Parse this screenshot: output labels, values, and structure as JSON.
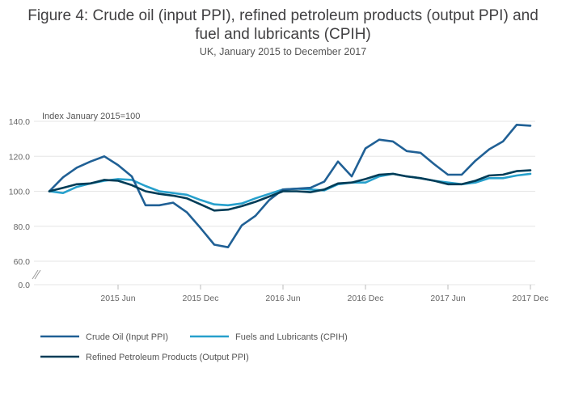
{
  "title_line1": "Figure 4: Crude oil (input PPI), refined petroleum products (output PPI) and",
  "title_line2": "fuel and lubricants (CPIH)",
  "subtitle": "UK, January 2015 to December 2017",
  "chart_data": {
    "type": "line",
    "ylabel": "Index January 2015=100",
    "y_ticks": [
      "0.0",
      "60.0",
      "80.0",
      "100.0",
      "120.0",
      "140.0"
    ],
    "x_ticks": [
      "2015 Jun",
      "2015 Dec",
      "2016 Jun",
      "2016 Dec",
      "2017 Jun",
      "2017 Dec"
    ],
    "x_tick_months": [
      5,
      11,
      17,
      23,
      29,
      35
    ],
    "y_axis_break": true,
    "grid": true,
    "legend_position": "bottom",
    "months": [
      "2015-01",
      "2015-02",
      "2015-03",
      "2015-04",
      "2015-05",
      "2015-06",
      "2015-07",
      "2015-08",
      "2015-09",
      "2015-10",
      "2015-11",
      "2015-12",
      "2016-01",
      "2016-02",
      "2016-03",
      "2016-04",
      "2016-05",
      "2016-06",
      "2016-07",
      "2016-08",
      "2016-09",
      "2016-10",
      "2016-11",
      "2016-12",
      "2017-01",
      "2017-02",
      "2017-03",
      "2017-04",
      "2017-05",
      "2017-06",
      "2017-07",
      "2017-08",
      "2017-09",
      "2017-10",
      "2017-11",
      "2017-12"
    ],
    "series": [
      {
        "name": "Crude Oil (Input PPI)",
        "color": "#206095",
        "values": [
          100,
          108,
          113.5,
          117,
          120,
          115,
          108.5,
          92,
          92,
          93.5,
          88,
          79,
          69.5,
          68,
          80.5,
          86,
          95,
          101,
          101.5,
          102,
          105.5,
          117,
          108.5,
          124.5,
          129.5,
          128.5,
          123,
          122,
          115.5,
          109.5,
          109.5,
          117.5,
          124,
          128.5,
          138,
          137.5
        ]
      },
      {
        "name": "Fuels and Lubricants (CPIH)",
        "color": "#27A0CC",
        "values": [
          100,
          99,
          102.5,
          104.5,
          106,
          107,
          106.5,
          103,
          100,
          99,
          98,
          95,
          92.5,
          92,
          93,
          96,
          98.5,
          101,
          101.5,
          101,
          100.5,
          104,
          105,
          105,
          108.5,
          110,
          108.5,
          107.5,
          106,
          105,
          104,
          105,
          107.5,
          107.5,
          109,
          110
        ]
      },
      {
        "name": "Refined Petroleum Products (Output PPI)",
        "color": "#003C57",
        "values": [
          100,
          102,
          104,
          104.5,
          106.5,
          106,
          103.5,
          100,
          98.5,
          97.5,
          96,
          92.5,
          89,
          89.5,
          91.5,
          94,
          97,
          100,
          100,
          99.5,
          101,
          104.5,
          105,
          107,
          109.5,
          110,
          108.5,
          107.5,
          106,
          104,
          104,
          106,
          109,
          109.5,
          111.5,
          112
        ]
      }
    ]
  }
}
